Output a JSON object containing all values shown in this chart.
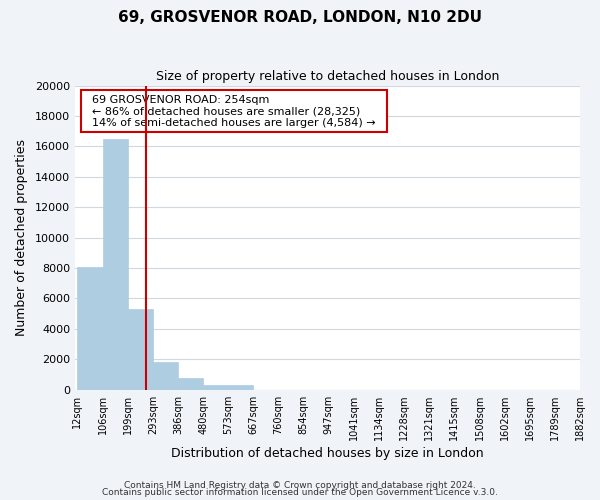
{
  "title": "69, GROSVENOR ROAD, LONDON, N10 2DU",
  "subtitle": "Size of property relative to detached houses in London",
  "xlabel": "Distribution of detached houses by size in London",
  "ylabel": "Number of detached properties",
  "bin_labels": [
    "12sqm",
    "106sqm",
    "199sqm",
    "293sqm",
    "386sqm",
    "480sqm",
    "573sqm",
    "667sqm",
    "760sqm",
    "854sqm",
    "947sqm",
    "1041sqm",
    "1134sqm",
    "1228sqm",
    "1321sqm",
    "1415sqm",
    "1508sqm",
    "1602sqm",
    "1695sqm",
    "1789sqm",
    "1882sqm"
  ],
  "bar_heights": [
    8100,
    16500,
    5300,
    1800,
    800,
    300,
    300,
    0,
    0,
    0,
    0,
    0,
    0,
    0,
    0,
    0,
    0,
    0,
    0,
    0
  ],
  "bar_color": "#aecde1",
  "bar_edgecolor": "#aecde1",
  "vline_x": 2.73,
  "vline_color": "#cc0000",
  "annotation_title": "69 GROSVENOR ROAD: 254sqm",
  "annotation_line1": "← 86% of detached houses are smaller (28,325)",
  "annotation_line2": "14% of semi-detached houses are larger (4,584) →",
  "annotation_box_edgecolor": "#cc0000",
  "ylim": [
    0,
    20000
  ],
  "yticks": [
    0,
    2000,
    4000,
    6000,
    8000,
    10000,
    12000,
    14000,
    16000,
    18000,
    20000
  ],
  "footer1": "Contains HM Land Registry data © Crown copyright and database right 2024.",
  "footer2": "Contains public sector information licensed under the Open Government Licence v.3.0.",
  "background_color": "#f0f4f8",
  "plot_background_color": "#ffffff",
  "grid_color": "#d0d8e0"
}
